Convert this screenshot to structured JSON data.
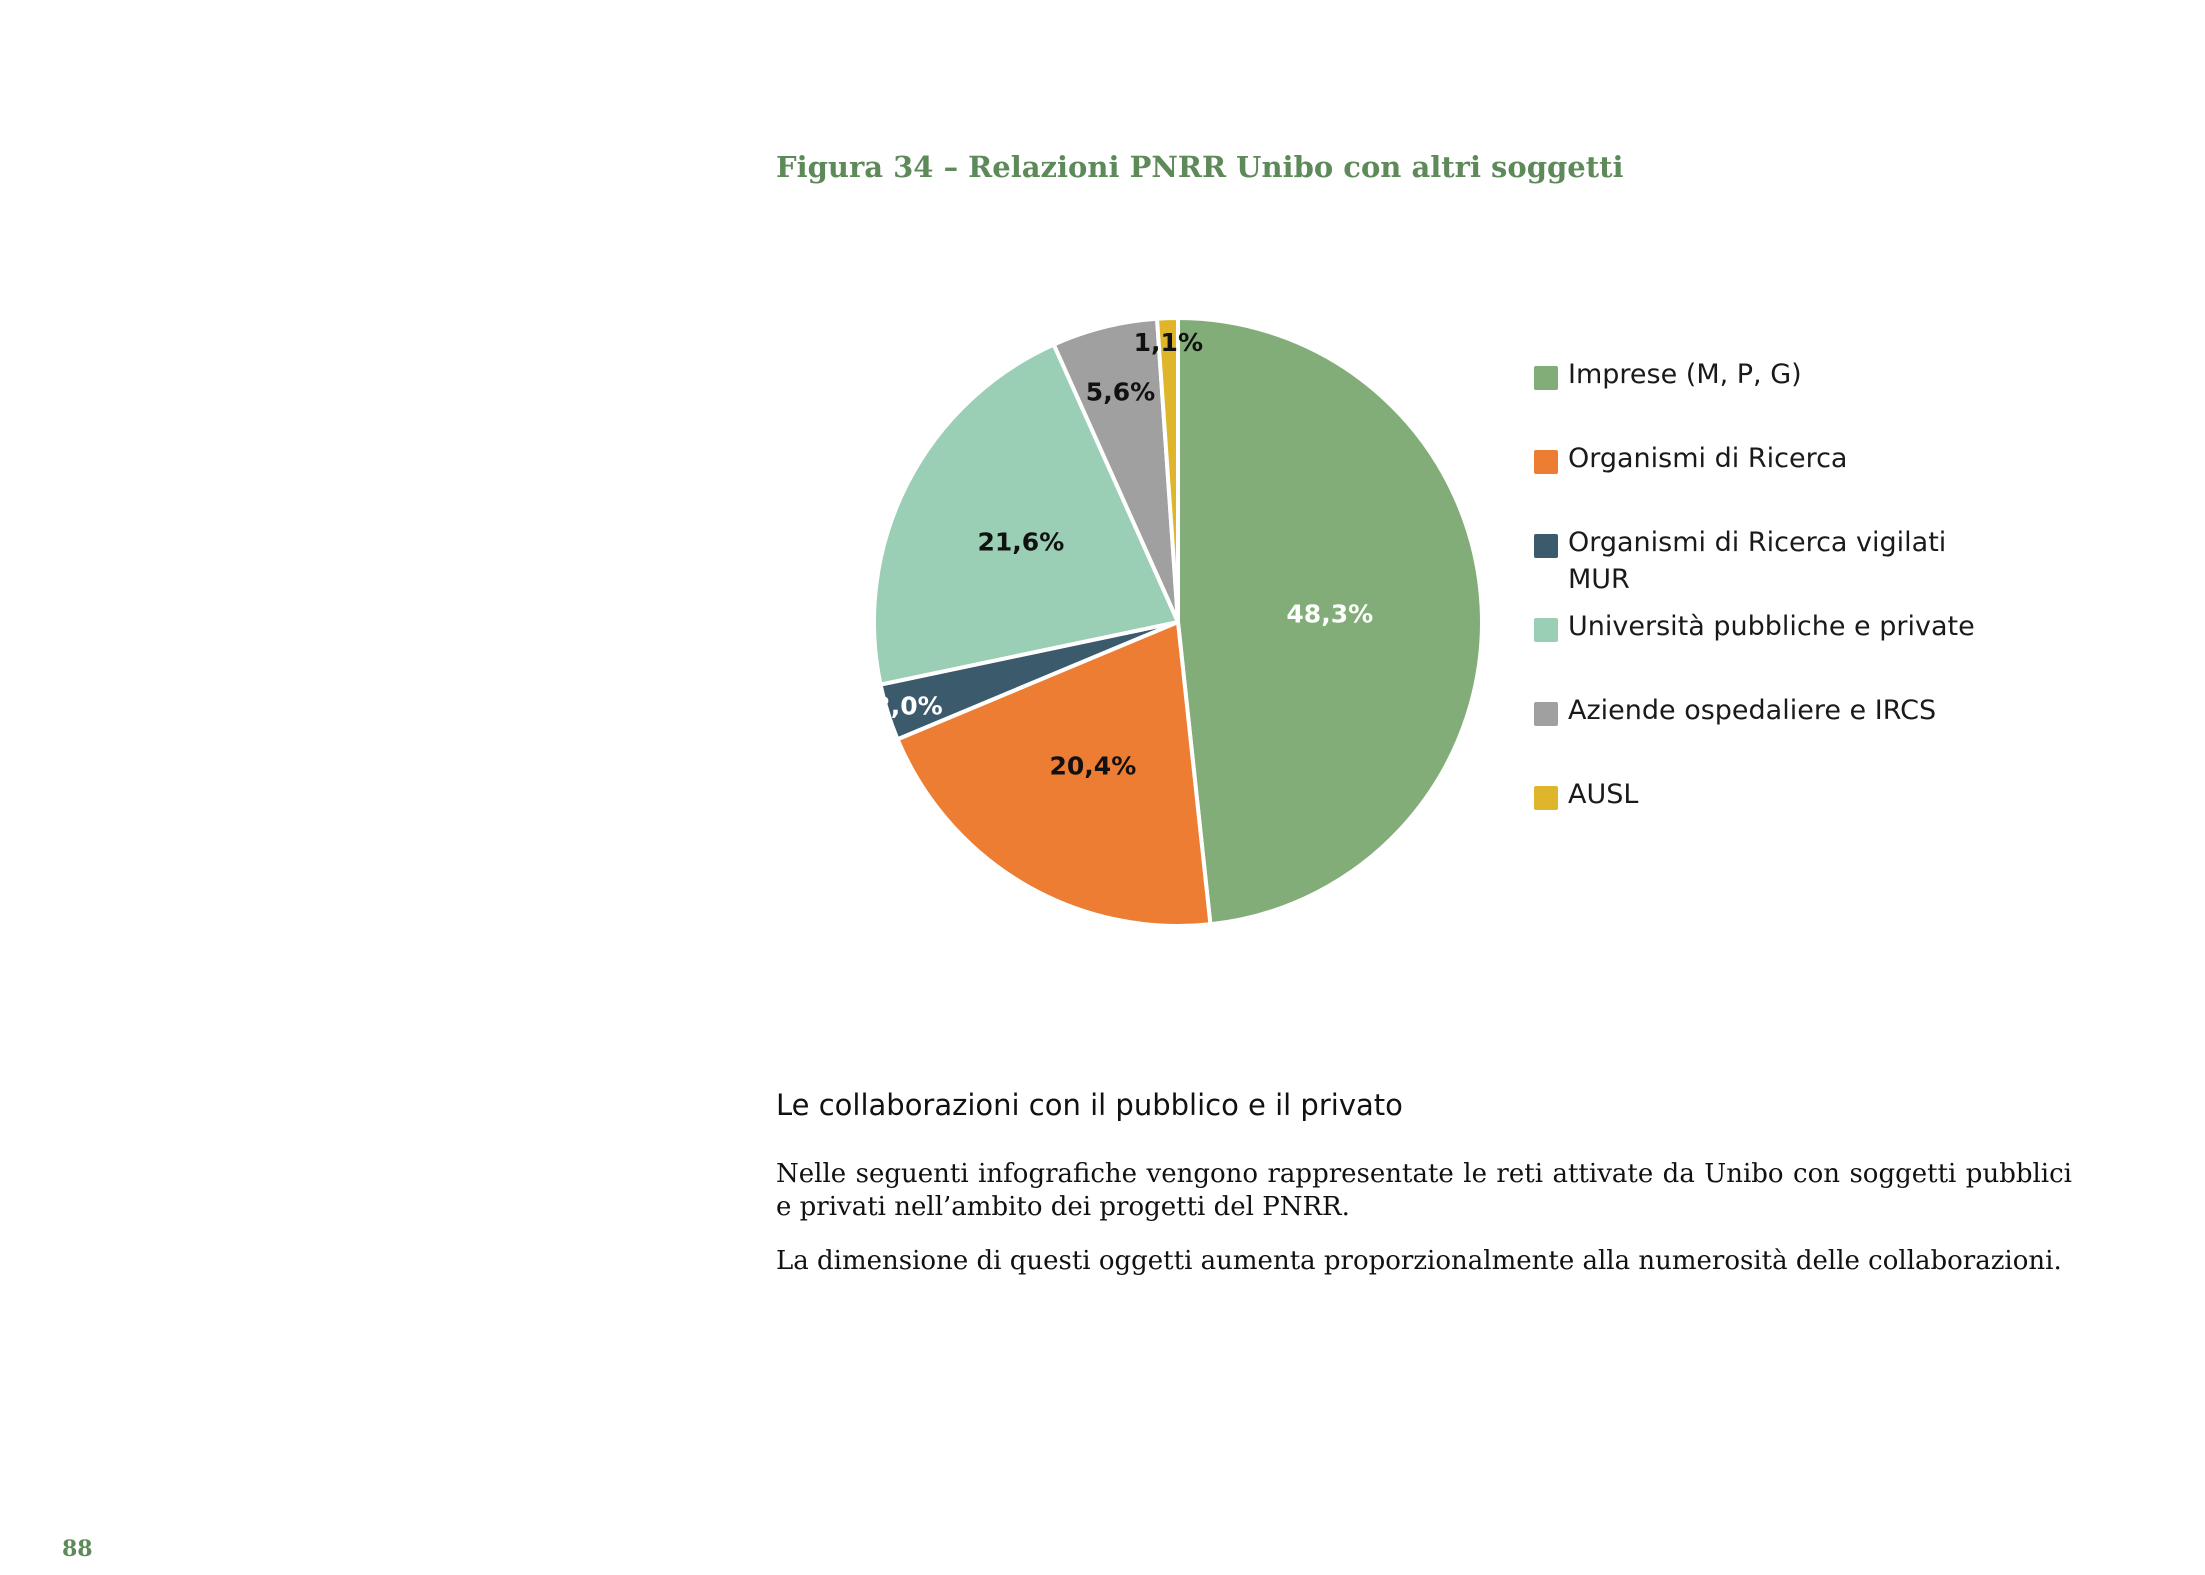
{
  "figure": {
    "title": "Figura 34 – Relazioni PNRR Unibo con altri soggetti"
  },
  "chart_data": {
    "type": "pie",
    "title": "",
    "start": "12 o'clock",
    "direction": "clockwise",
    "slices": [
      {
        "label": "Imprese (M, P, G)",
        "value": 48.3,
        "display": "48,3%",
        "color": "#82ad78",
        "label_color": "#ffffff"
      },
      {
        "label": "Organismi di Ricerca",
        "value": 20.4,
        "display": "20,4%",
        "color": "#ed7d32",
        "label_color": "#111111"
      },
      {
        "label": "Organismi di Ricerca vigilati MUR",
        "value": 3.0,
        "display": "3,0%",
        "color": "#3b5a6c",
        "label_color": "#ffffff"
      },
      {
        "label": "Università pubbliche e private",
        "value": 21.6,
        "display": "21,6%",
        "color": "#9acfb5",
        "label_color": "#111111"
      },
      {
        "label": "Aziende ospedaliere e IRCS",
        "value": 5.6,
        "display": "5,6%",
        "color": "#a0a0a0",
        "label_color": "#111111"
      },
      {
        "label": "AUSL",
        "value": 1.1,
        "display": "1,1%",
        "color": "#dfb52c",
        "label_color": "#111111"
      }
    ],
    "legend_position": "right"
  },
  "section": {
    "heading": "Le collaborazioni con il pubblico e il privato",
    "paragraphs": [
      "Nelle seguenti infografiche vengono rappresentate le reti attivate da Unibo con soggetti pubblici e privati nell’ambito dei progetti del PNRR.",
      "La dimensione di questi oggetti aumenta proporzionalmente alla numerosità delle collaborazioni."
    ]
  },
  "page_number": "88"
}
